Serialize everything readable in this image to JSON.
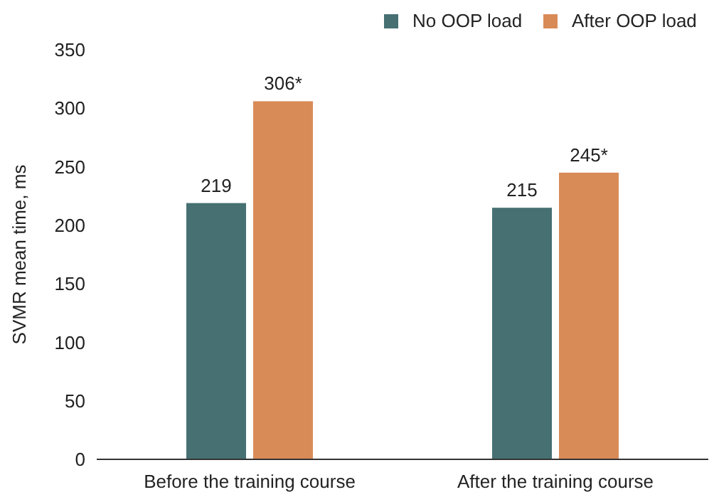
{
  "chart_data": {
    "type": "bar",
    "ylabel": "SVMR mean time, ms",
    "categories": [
      "Before the training course",
      "After the training course"
    ],
    "series": [
      {
        "name": "No OOP load",
        "color": "#467072",
        "values": [
          219,
          215
        ],
        "value_labels": [
          "219",
          "215"
        ]
      },
      {
        "name": "After OOP load",
        "color": "#d98b57",
        "values": [
          306,
          245
        ],
        "value_labels": [
          "306*",
          "245*"
        ]
      }
    ],
    "ylim": [
      0,
      350
    ],
    "yticks": [
      0,
      50,
      100,
      150,
      200,
      250,
      300,
      350
    ],
    "grid": false,
    "legend": "top right"
  }
}
